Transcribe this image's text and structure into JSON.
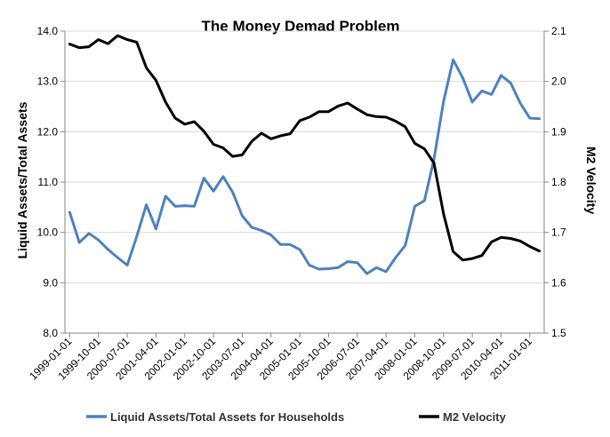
{
  "chart_data": {
    "type": "line",
    "title": "The Money Demad Problem",
    "ylabel": "Liquid Assets/Total Assets",
    "y2label": "M2 Velocity",
    "ylim": [
      8.0,
      14.0
    ],
    "y2lim": [
      1.5,
      2.1
    ],
    "yticks": [
      "8.0",
      "9.0",
      "10.0",
      "11.0",
      "12.0",
      "13.0",
      "14.0"
    ],
    "y2ticks": [
      "1.5",
      "1.6",
      "1.7",
      "1.8",
      "1.9",
      "2.0",
      "2.1"
    ],
    "xticks": [
      "1999-01-01",
      "1999-10-01",
      "2000-07-01",
      "2001-04-01",
      "2002-01-01",
      "2002-10-01",
      "2003-07-01",
      "2004-04-01",
      "2005-01-01",
      "2005-10-01",
      "2006-07-01",
      "2007-04-01",
      "2008-01-01",
      "2008-10-01",
      "2009-07-01",
      "2010-04-01",
      "2011-01-01"
    ],
    "legend_position": "bottom",
    "series": [
      {
        "name": "Liquid Assets/Total  Assets for Households",
        "axis": "left",
        "color": "#4f81bd",
        "values": [
          10.4,
          9.8,
          9.98,
          9.85,
          9.66,
          9.5,
          9.35,
          9.92,
          10.55,
          10.07,
          10.72,
          10.52,
          10.53,
          10.52,
          11.08,
          10.82,
          11.11,
          10.8,
          10.33,
          10.1,
          10.04,
          9.95,
          9.76,
          9.76,
          9.66,
          9.35,
          9.27,
          9.28,
          9.3,
          9.42,
          9.4,
          9.18,
          9.3,
          9.22,
          9.5,
          9.74,
          10.52,
          10.63,
          11.45,
          12.6,
          13.43,
          13.07,
          12.59,
          12.81,
          12.74,
          13.12,
          12.97,
          12.57,
          12.27,
          12.26
        ]
      },
      {
        "name": "M2 Velocity",
        "axis": "right",
        "color": "#000000",
        "values": [
          2.074,
          2.067,
          2.069,
          2.083,
          2.075,
          2.091,
          2.083,
          2.078,
          2.027,
          2.002,
          1.959,
          1.927,
          1.915,
          1.92,
          1.901,
          1.875,
          1.868,
          1.851,
          1.854,
          1.881,
          1.897,
          1.886,
          1.892,
          1.896,
          1.922,
          1.929,
          1.94,
          1.94,
          1.951,
          1.957,
          1.945,
          1.934,
          1.93,
          1.929,
          1.921,
          1.91,
          1.877,
          1.866,
          1.838,
          1.737,
          1.662,
          1.645,
          1.648,
          1.654,
          1.681,
          1.69,
          1.688,
          1.683,
          1.672,
          1.663
        ]
      }
    ]
  }
}
